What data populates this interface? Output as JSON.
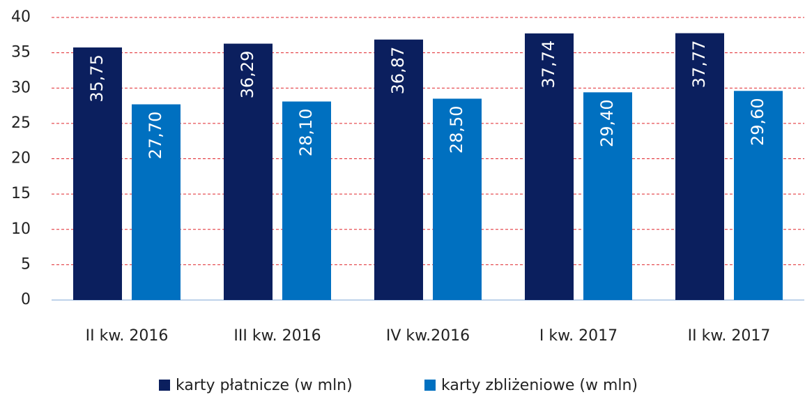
{
  "chart_data": {
    "type": "bar",
    "categories": [
      "II kw. 2016",
      "III kw. 2016",
      "IV kw.2016",
      "I kw. 2017",
      "II kw. 2017"
    ],
    "series": [
      {
        "name": "karty płatnicze (w mln)",
        "color": "#0b1f5e",
        "values": [
          35.75,
          36.29,
          36.87,
          37.74,
          37.77
        ],
        "value_labels": [
          "35,75",
          "36,29",
          "36,87",
          "37,74",
          "37,77"
        ]
      },
      {
        "name": "karty zbliżeniowe (w mln)",
        "color": "#0070c0",
        "values": [
          27.7,
          28.1,
          28.5,
          29.4,
          29.6
        ],
        "value_labels": [
          "27,70",
          "28,10",
          "28,50",
          "29,40",
          "29,60"
        ]
      }
    ],
    "ylim": [
      0,
      40
    ],
    "yticks": [
      0,
      5,
      10,
      15,
      20,
      25,
      30,
      35,
      40
    ],
    "grid": true
  }
}
